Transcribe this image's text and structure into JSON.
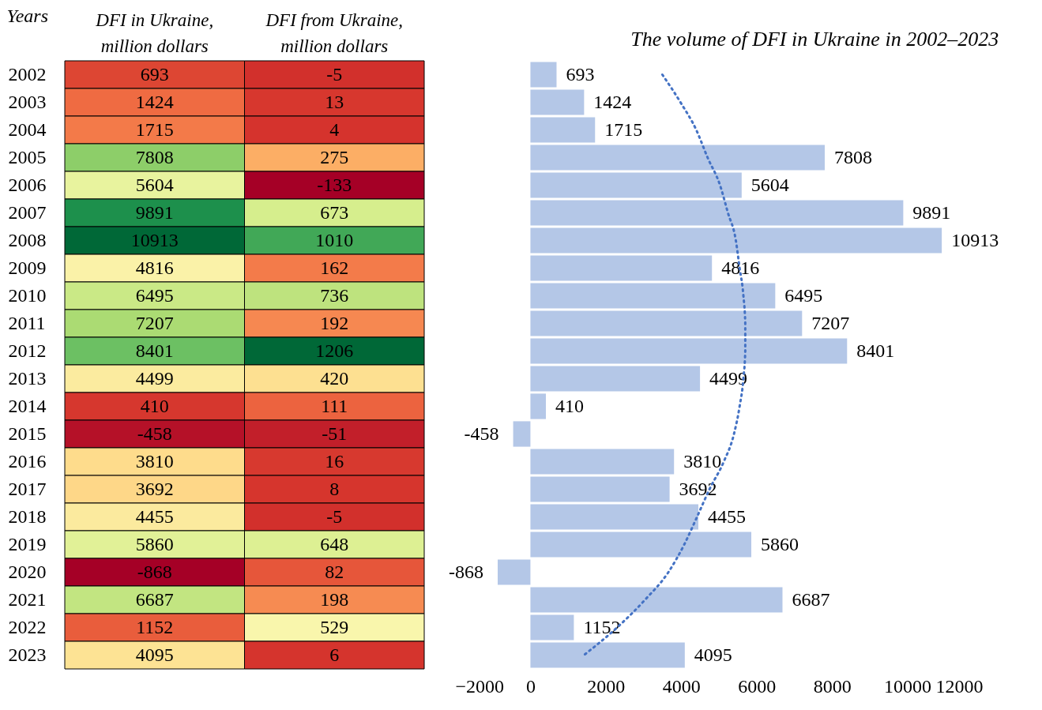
{
  "chart_data": [
    {
      "type": "heatmap",
      "ylabel": "Years",
      "data_labels": true,
      "categories": [
        "DFI in Ukraine, million dollars",
        "DFI from Ukraine, million dollars"
      ],
      "y_categories": [
        "2002",
        "2003",
        "2004",
        "2005",
        "2006",
        "2007",
        "2008",
        "2009",
        "2010",
        "2011",
        "2012",
        "2013",
        "2014",
        "2015",
        "2016",
        "2017",
        "2018",
        "2019",
        "2020",
        "2021",
        "2022",
        "2023"
      ],
      "cells": [
        [
          693,
          -5
        ],
        [
          1424,
          13
        ],
        [
          1715,
          4
        ],
        [
          7808,
          275
        ],
        [
          5604,
          -133
        ],
        [
          9891,
          673
        ],
        [
          10913,
          1010
        ],
        [
          4816,
          162
        ],
        [
          6495,
          736
        ],
        [
          7207,
          192
        ],
        [
          8401,
          1206
        ],
        [
          4499,
          420
        ],
        [
          410,
          111
        ],
        [
          -458,
          -51
        ],
        [
          3810,
          16
        ],
        [
          3692,
          8
        ],
        [
          4455,
          -5
        ],
        [
          5860,
          648
        ],
        [
          -868,
          82
        ],
        [
          6687,
          198
        ],
        [
          1152,
          529
        ],
        [
          4095,
          6
        ]
      ]
    },
    {
      "type": "bar",
      "title": "The volume of DFI in Ukraine in 2002–2023",
      "orientation": "horizontal",
      "categories": [
        null,
        null,
        null,
        null,
        null,
        null,
        null,
        null,
        null,
        null,
        null,
        null,
        null,
        null,
        null,
        null,
        null,
        null,
        null,
        null,
        null,
        null
      ],
      "series": [
        {
          "type": "bar",
          "color": "#b4c7e7",
          "values": [
            693,
            1424,
            1715,
            7808,
            5604,
            9891,
            10913,
            4816,
            6495,
            7207,
            8401,
            4499,
            410,
            -458,
            3810,
            3692,
            4455,
            5860,
            -868,
            6687,
            1152,
            4095
          ],
          "value_labels": [
            "693",
            "1424",
            "1715",
            "7808",
            "5604",
            "9891",
            "10913",
            "4816",
            "6495",
            "7207",
            "8401",
            "4499",
            "410",
            "-458",
            "3810",
            "3692",
            "4455",
            "5860",
            "-868",
            "6687",
            "1152",
            "4095"
          ]
        },
        {
          "type": "line",
          "color": "#4472c4",
          "line_style": "dotted",
          "values": [
            3500,
            3980,
            4400,
            4700,
            5030,
            5240,
            5450,
            5550,
            5650,
            5700,
            5700,
            5650,
            5550,
            5400,
            5130,
            4750,
            4420,
            4080,
            3660,
            3040,
            2300,
            1420
          ]
        }
      ],
      "xlim": [
        -2000,
        12000
      ],
      "xticks": [
        -2000,
        0,
        2000,
        4000,
        6000,
        8000,
        10000,
        12000
      ],
      "tick_labels": "x",
      "grid": false
    }
  ]
}
